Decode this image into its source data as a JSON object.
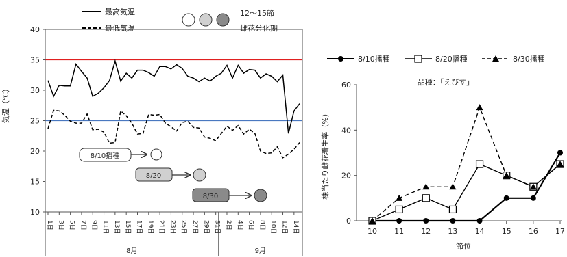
{
  "chart_data": [
    {
      "type": "line",
      "ylabel": "気温（℃）",
      "ylim": [
        10,
        40
      ],
      "yticks": [
        10,
        15,
        20,
        25,
        30,
        35,
        40
      ],
      "x_tick_labels": [
        "1日",
        "3日",
        "5日",
        "7日",
        "9日",
        "11日",
        "13日",
        "15日",
        "17日",
        "19日",
        "21日",
        "23日",
        "25日",
        "27日",
        "29日",
        "31日",
        "2日",
        "4日",
        "6日",
        "8日",
        "10日",
        "12日",
        "14日"
      ],
      "month_labels": [
        "8月",
        "9月"
      ],
      "reference_lines": [
        {
          "y": 35,
          "color": "#e02020"
        },
        {
          "y": 25,
          "color": "#4a78c0"
        }
      ],
      "legend": {
        "max_label": "最高気温",
        "min_label": "最低気温",
        "circle_label_line1": "12～15節",
        "circle_label_line2": "雌花分化期"
      },
      "series": [
        {
          "name": "最高気温",
          "style": "solid",
          "color": "#000000",
          "values": [
            31.6,
            29.0,
            30.8,
            30.7,
            30.7,
            34.3,
            33.1,
            32.0,
            29.0,
            29.5,
            30.4,
            31.6,
            34.8,
            31.5,
            32.8,
            32.0,
            33.3,
            33.3,
            32.9,
            32.3,
            33.9,
            33.9,
            33.5,
            34.2,
            33.6,
            32.3,
            32.0,
            31.4,
            32.0,
            31.5,
            32.3,
            32.8,
            34.1,
            32.0,
            34.1,
            32.8,
            33.4,
            33.3,
            32.0,
            32.7,
            32.3,
            31.4,
            32.5,
            22.9,
            26.6,
            27.8
          ]
        },
        {
          "name": "最低気温",
          "style": "dashed",
          "color": "#000000",
          "values": [
            23.7,
            26.7,
            26.6,
            25.9,
            24.9,
            24.6,
            24.6,
            26.1,
            23.5,
            23.6,
            23.1,
            21.3,
            21.4,
            26.6,
            25.8,
            24.6,
            22.8,
            22.9,
            26.0,
            25.9,
            26.0,
            24.6,
            24.0,
            23.3,
            24.7,
            24.9,
            23.9,
            23.8,
            22.3,
            22.1,
            21.7,
            22.9,
            24.1,
            23.4,
            24.2,
            22.8,
            23.6,
            22.9,
            20.0,
            19.6,
            19.7,
            20.7,
            18.9,
            19.5,
            20.3,
            21.4
          ]
        }
      ],
      "sowing": [
        {
          "label": "8/10播種",
          "fill": "#ffffff"
        },
        {
          "label": "8/20",
          "fill": "#d0d0d0"
        },
        {
          "label": "8/30",
          "fill": "#8a8a8a"
        }
      ]
    },
    {
      "type": "line",
      "title": "品種：「えびす」",
      "xlabel": "節位",
      "ylabel": "株当たり雌花着生率（%）",
      "categories": [
        "10",
        "11",
        "12",
        "13",
        "14",
        "15",
        "16",
        "17"
      ],
      "ylim": [
        0,
        60
      ],
      "yticks": [
        0,
        20,
        40,
        60
      ],
      "legend_position": "top",
      "series": [
        {
          "name": "8/10播種",
          "style": "solid",
          "marker": "filled-circle",
          "values": [
            0,
            0,
            0,
            0,
            0,
            10,
            10,
            30
          ]
        },
        {
          "name": "8/20播種",
          "style": "solid",
          "marker": "open-square",
          "values": [
            0,
            5,
            10,
            5,
            25,
            20,
            15,
            25
          ]
        },
        {
          "name": "8/30播種",
          "style": "dashed",
          "marker": "filled-triangle",
          "values": [
            0,
            10,
            15,
            15,
            50,
            20,
            15,
            25
          ]
        }
      ]
    }
  ]
}
